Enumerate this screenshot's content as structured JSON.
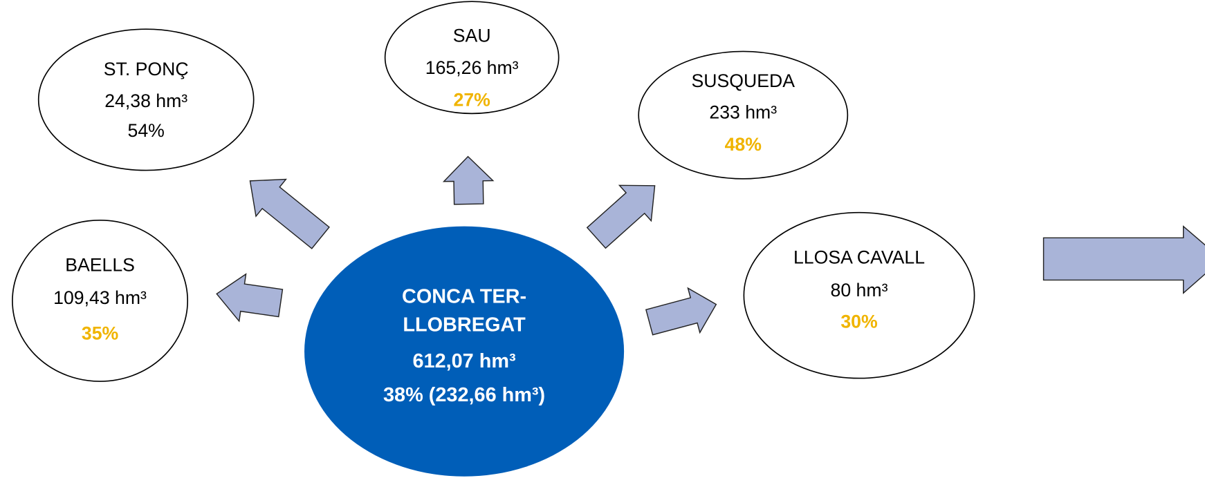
{
  "center": {
    "lines": [
      "CONCA TER-",
      "LLOBREGAT"
    ],
    "capacity": "612,07 hm³",
    "summary": "38% (232,66 hm³)"
  },
  "nodes": [
    {
      "name": "ST. PONÇ",
      "capacity": "24,38 hm³",
      "percent": "54%"
    },
    {
      "name": "SAU",
      "capacity": "165,26 hm³",
      "percent": "27%"
    },
    {
      "name": "SUSQUEDA",
      "capacity": "233 hm³",
      "percent": "48%"
    },
    {
      "name": "BAELLS",
      "capacity": "109,43 hm³",
      "percent": "35%"
    },
    {
      "name": "LLOSA CAVALL",
      "capacity": "80 hm³",
      "percent": "30%"
    }
  ]
}
